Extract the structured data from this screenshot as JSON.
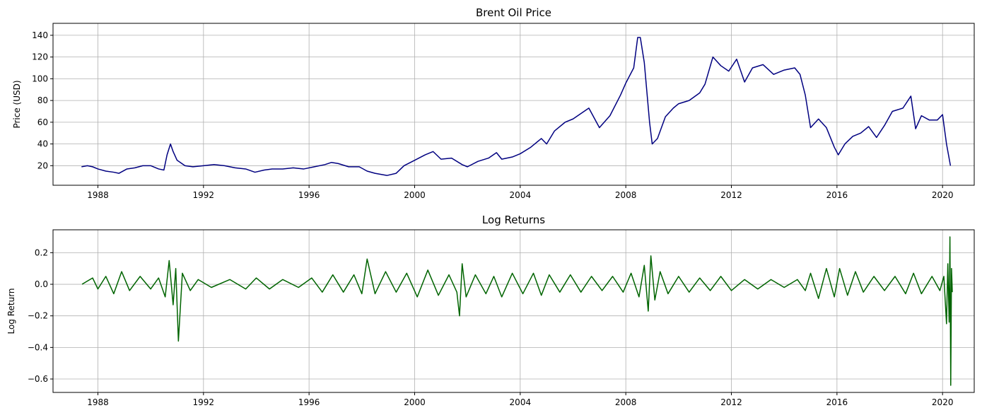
{
  "chart_data": [
    {
      "type": "line",
      "title": "Brent Oil Price",
      "xlabel": "",
      "ylabel": "Price (USD)",
      "xlim": [
        1986.3,
        2021.2
      ],
      "ylim": [
        2,
        151
      ],
      "x_ticks": [
        "1988",
        "1992",
        "1996",
        "2000",
        "2004",
        "2008",
        "2012",
        "2016",
        "2020"
      ],
      "y_ticks": [
        "20",
        "40",
        "60",
        "80",
        "100",
        "120",
        "140"
      ],
      "grid": true,
      "color": "#000080",
      "series": [
        {
          "x": [
            1987.38,
            1987.6,
            1987.8,
            1988.0,
            1988.3,
            1988.6,
            1988.8,
            1989.1,
            1989.4,
            1989.7,
            1990.0,
            1990.3,
            1990.5,
            1990.62,
            1990.75,
            1990.85,
            1991.0,
            1991.3,
            1991.6,
            1992.0,
            1992.4,
            1992.8,
            1993.2,
            1993.6,
            1993.95,
            1994.3,
            1994.6,
            1995.0,
            1995.4,
            1995.8,
            1996.2,
            1996.6,
            1996.85,
            1997.1,
            1997.5,
            1997.9,
            1998.2,
            1998.5,
            1998.95,
            1999.3,
            1999.6,
            2000.0,
            2000.4,
            2000.7,
            2001.0,
            2001.4,
            2001.8,
            2002.0,
            2002.4,
            2002.8,
            2003.1,
            2003.3,
            2003.7,
            2004.0,
            2004.4,
            2004.8,
            2005.0,
            2005.3,
            2005.7,
            2006.0,
            2006.6,
            2007.0,
            2007.4,
            2007.8,
            2008.0,
            2008.3,
            2008.45,
            2008.55,
            2008.7,
            2008.9,
            2009.0,
            2009.2,
            2009.5,
            2009.8,
            2010.0,
            2010.4,
            2010.8,
            2011.0,
            2011.3,
            2011.6,
            2011.9,
            2012.2,
            2012.5,
            2012.8,
            2013.2,
            2013.6,
            2014.0,
            2014.4,
            2014.6,
            2014.8,
            2015.0,
            2015.3,
            2015.6,
            2015.9,
            2016.05,
            2016.3,
            2016.6,
            2016.9,
            2017.2,
            2017.5,
            2017.8,
            2018.1,
            2018.5,
            2018.8,
            2018.98,
            2019.2,
            2019.5,
            2019.8,
            2020.0,
            2020.15,
            2020.3
          ],
          "values": [
            19,
            20,
            19,
            17,
            15,
            14,
            13,
            17,
            18,
            20,
            20,
            17,
            16,
            30,
            40,
            33,
            25,
            20,
            19,
            20,
            21,
            20,
            18,
            17,
            14,
            16,
            17,
            17,
            18,
            17,
            19,
            21,
            23,
            22,
            19,
            19,
            15,
            13,
            11,
            13,
            20,
            25,
            30,
            33,
            26,
            27,
            21,
            19,
            24,
            27,
            32,
            26,
            28,
            31,
            37,
            45,
            40,
            52,
            60,
            63,
            73,
            55,
            66,
            85,
            96,
            110,
            138,
            138,
            115,
            60,
            40,
            45,
            65,
            73,
            77,
            80,
            87,
            95,
            120,
            112,
            107,
            118,
            97,
            110,
            113,
            104,
            108,
            110,
            104,
            85,
            55,
            63,
            55,
            37,
            30,
            40,
            47,
            50,
            56,
            46,
            57,
            70,
            73,
            84,
            54,
            66,
            62,
            62,
            67,
            40,
            20
          ]
        }
      ]
    },
    {
      "type": "line",
      "title": "Log Returns",
      "xlabel": "",
      "ylabel": "Log Return",
      "xlim": [
        1986.3,
        2021.2
      ],
      "ylim": [
        -0.685,
        0.345
      ],
      "x_ticks": [
        "1988",
        "1992",
        "1996",
        "2000",
        "2004",
        "2008",
        "2012",
        "2016",
        "2020"
      ],
      "y_ticks": [
        "0.2",
        "0.0",
        "−0.2",
        "−0.4",
        "−0.6"
      ],
      "grid": true,
      "color": "#006400",
      "series": [
        {
          "x": [
            1987.4,
            1987.8,
            1988.0,
            1988.3,
            1988.6,
            1988.9,
            1989.2,
            1989.6,
            1990.0,
            1990.3,
            1990.55,
            1990.7,
            1990.85,
            1990.95,
            1991.05,
            1991.2,
            1991.5,
            1991.8,
            1992.3,
            1993.0,
            1993.6,
            1994.0,
            1994.5,
            1995.0,
            1995.6,
            1996.1,
            1996.5,
            1996.9,
            1997.3,
            1997.7,
            1998.0,
            1998.2,
            1998.5,
            1998.9,
            1999.3,
            1999.7,
            2000.1,
            2000.5,
            2000.9,
            2001.3,
            2001.6,
            2001.7,
            2001.8,
            2001.95,
            2002.3,
            2002.7,
            2003.0,
            2003.3,
            2003.7,
            2004.1,
            2004.5,
            2004.8,
            2005.1,
            2005.5,
            2005.9,
            2006.3,
            2006.7,
            2007.1,
            2007.5,
            2007.9,
            2008.2,
            2008.5,
            2008.7,
            2008.85,
            2008.95,
            2009.1,
            2009.3,
            2009.6,
            2010.0,
            2010.4,
            2010.8,
            2011.2,
            2011.6,
            2012.0,
            2012.5,
            2013.0,
            2013.5,
            2014.0,
            2014.5,
            2014.8,
            2015.0,
            2015.3,
            2015.6,
            2015.9,
            2016.1,
            2016.4,
            2016.7,
            2017.0,
            2017.4,
            2017.8,
            2018.2,
            2018.6,
            2018.9,
            2019.2,
            2019.6,
            2019.9,
            2020.05,
            2020.15,
            2020.2,
            2020.25,
            2020.28,
            2020.31,
            2020.34,
            2020.37
          ],
          "values": [
            0.0,
            0.04,
            -0.03,
            0.05,
            -0.06,
            0.08,
            -0.04,
            0.05,
            -0.03,
            0.04,
            -0.08,
            0.15,
            -0.13,
            0.1,
            -0.36,
            0.07,
            -0.04,
            0.03,
            -0.02,
            0.03,
            -0.03,
            0.04,
            -0.03,
            0.03,
            -0.02,
            0.04,
            -0.05,
            0.06,
            -0.05,
            0.06,
            -0.06,
            0.16,
            -0.06,
            0.08,
            -0.05,
            0.07,
            -0.08,
            0.09,
            -0.07,
            0.06,
            -0.05,
            -0.2,
            0.13,
            -0.08,
            0.06,
            -0.06,
            0.05,
            -0.08,
            0.07,
            -0.06,
            0.07,
            -0.07,
            0.06,
            -0.05,
            0.06,
            -0.05,
            0.05,
            -0.04,
            0.05,
            -0.05,
            0.07,
            -0.08,
            0.12,
            -0.17,
            0.18,
            -0.1,
            0.08,
            -0.06,
            0.05,
            -0.05,
            0.04,
            -0.04,
            0.05,
            -0.04,
            0.03,
            -0.03,
            0.03,
            -0.02,
            0.03,
            -0.04,
            0.07,
            -0.09,
            0.1,
            -0.08,
            0.1,
            -0.07,
            0.08,
            -0.05,
            0.05,
            -0.04,
            0.05,
            -0.06,
            0.07,
            -0.06,
            0.05,
            -0.04,
            0.05,
            -0.25,
            0.13,
            -0.24,
            0.3,
            -0.64,
            0.1,
            -0.05
          ]
        }
      ]
    }
  ]
}
